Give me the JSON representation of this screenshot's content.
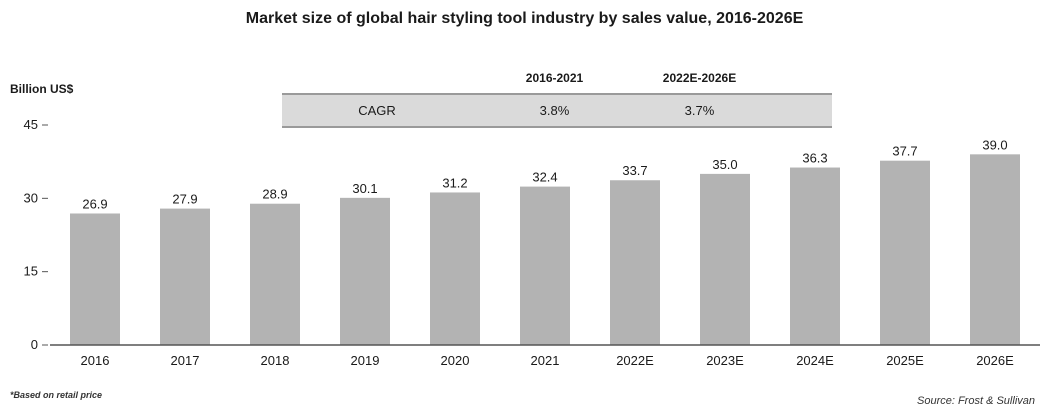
{
  "title": "Market size of global hair styling tool industry by sales value, 2016-2026E",
  "unit_label": "Billion US$",
  "cagr_table": {
    "headers": [
      "",
      "2016-2021",
      "2022E-2026E"
    ],
    "row": {
      "label": "CAGR",
      "values": [
        "3.8%",
        "3.7%"
      ]
    }
  },
  "footnote": "*Based on retail price",
  "source": "Source: Frost & Sullivan",
  "colors": {
    "bar": "#b3b3b3",
    "axis": "#555555",
    "table_row": "#dadada"
  },
  "chart_data": {
    "type": "bar",
    "title": "Market size of global hair styling tool industry by sales value, 2016-2026E",
    "ylabel": "Billion US$",
    "xlabel": "",
    "categories": [
      "2016",
      "2017",
      "2018",
      "2019",
      "2020",
      "2021",
      "2022E",
      "2023E",
      "2024E",
      "2025E",
      "2026E"
    ],
    "values": [
      26.9,
      27.9,
      28.9,
      30.1,
      31.2,
      32.4,
      33.7,
      35.0,
      36.3,
      37.7,
      39.0
    ],
    "value_labels": [
      "26.9",
      "27.9",
      "28.9",
      "30.1",
      "31.2",
      "32.4",
      "33.7",
      "35.0",
      "36.3",
      "37.7",
      "39.0"
    ],
    "ylim": [
      0,
      45
    ],
    "yticks": [
      0,
      15,
      30,
      45
    ],
    "grid": false,
    "legend": "none"
  }
}
